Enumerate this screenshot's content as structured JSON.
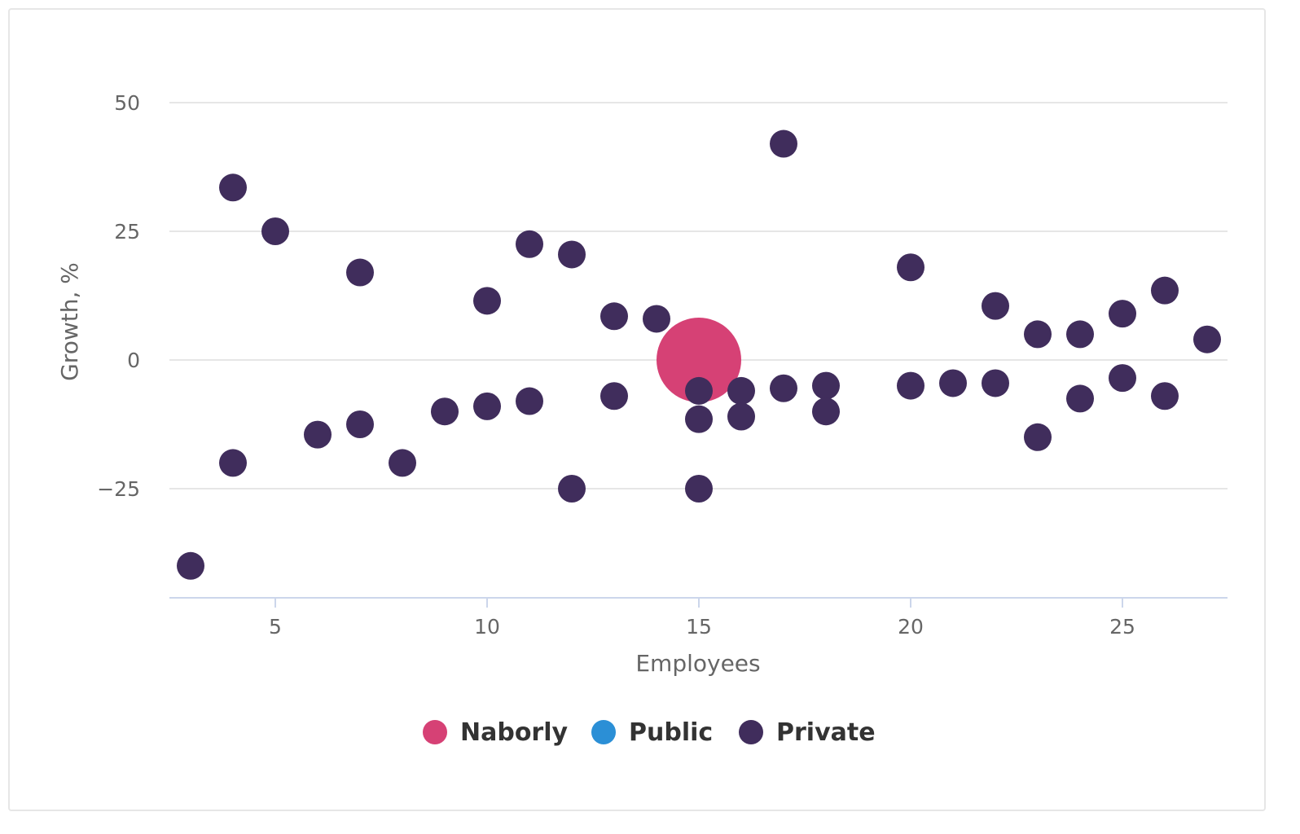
{
  "chart_data": {
    "type": "scatter",
    "title": "",
    "xlabel": "Employees",
    "ylabel": "Growth, %",
    "xlim": [
      2.5,
      27.5
    ],
    "ylim": [
      -46,
      63
    ],
    "x_ticks": [
      5,
      10,
      15,
      20,
      25
    ],
    "y_ticks": [
      50,
      25,
      0,
      -25
    ],
    "grid": true,
    "legend": {
      "placement": "bottom"
    },
    "colors": {
      "Naborly": "#d64175",
      "Public": "#2b8fd6",
      "Private": "#402d5c"
    },
    "series": [
      {
        "name": "Naborly",
        "points": [
          [
            15,
            0
          ]
        ]
      },
      {
        "name": "Public",
        "points": []
      },
      {
        "name": "Private",
        "points": [
          [
            3,
            -40
          ],
          [
            4,
            33.5
          ],
          [
            4,
            -20
          ],
          [
            5,
            25
          ],
          [
            6,
            -14.5
          ],
          [
            7,
            17
          ],
          [
            7,
            -12.5
          ],
          [
            8,
            -20
          ],
          [
            9,
            -10
          ],
          [
            10,
            11.5
          ],
          [
            10,
            -9
          ],
          [
            11,
            22.5
          ],
          [
            11,
            -8
          ],
          [
            12,
            20.5
          ],
          [
            12,
            -25
          ],
          [
            13,
            8.5
          ],
          [
            13,
            -7
          ],
          [
            14,
            8
          ],
          [
            15,
            -6
          ],
          [
            15,
            -11.5
          ],
          [
            15,
            -25
          ],
          [
            16,
            -6
          ],
          [
            16,
            -11
          ],
          [
            17,
            42
          ],
          [
            17,
            -5.5
          ],
          [
            18,
            -5
          ],
          [
            18,
            -10
          ],
          [
            20,
            18
          ],
          [
            20,
            -5
          ],
          [
            21,
            -4.5
          ],
          [
            22,
            10.5
          ],
          [
            22,
            -4.5
          ],
          [
            23,
            5
          ],
          [
            23,
            -15
          ],
          [
            24,
            5
          ],
          [
            24,
            -7.5
          ],
          [
            25,
            9
          ],
          [
            25,
            -3.5
          ],
          [
            26,
            13.5
          ],
          [
            26,
            -7
          ],
          [
            27,
            4
          ]
        ]
      }
    ]
  }
}
